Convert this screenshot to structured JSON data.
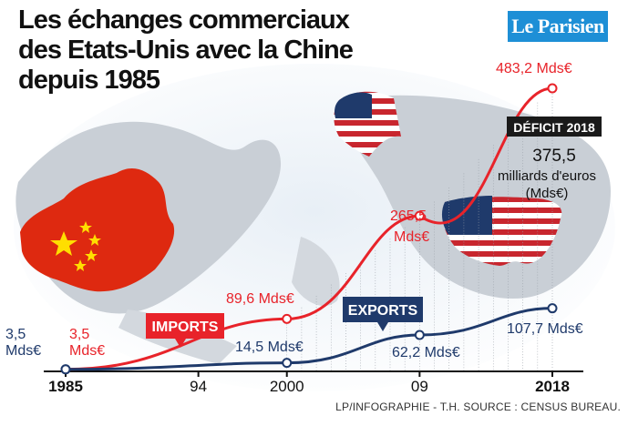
{
  "title_lines": [
    "Les échanges commerciaux",
    "des Etats-Unis avec la Chine",
    "depuis 1985"
  ],
  "logo": "Le Parisien",
  "credit": "LP/INFOGRAPHIE - T.H. SOURCE : CENSUS BUREAU.",
  "colors": {
    "imports": "#e8232a",
    "exports": "#1f3a6b",
    "deficit_box": "#1a1a1a"
  },
  "chart_data": {
    "type": "line",
    "x_ticks": [
      "1985",
      "94",
      "2000",
      "09",
      "2018"
    ],
    "series": [
      {
        "name": "IMPORTS",
        "points": [
          [
            1985,
            3.5
          ],
          [
            2000,
            89.6
          ],
          [
            2009,
            265.5
          ],
          [
            2018,
            483.2
          ]
        ]
      },
      {
        "name": "EXPORTS",
        "points": [
          [
            1985,
            3.5
          ],
          [
            2000,
            14.5
          ],
          [
            2009,
            62.2
          ],
          [
            2018,
            107.7
          ]
        ]
      }
    ],
    "labels": {
      "imports_1985": [
        "3,5",
        "Mds€"
      ],
      "exports_1985": [
        "3,5",
        "Mds€"
      ],
      "imports_2000": "89,6 Mds€",
      "exports_2000": "14,5 Mds€",
      "imports_2009": [
        "265,5",
        "Mds€"
      ],
      "exports_2009": "62,2 Mds€",
      "imports_2018": "483,2 Mds€",
      "exports_2018": "107,7 Mds€"
    },
    "deficit": {
      "label": "DÉFICIT 2018",
      "value": "375,5",
      "unit_lines": [
        "milliards d'euros",
        "(Mds€)"
      ]
    },
    "ylim": [
      0,
      500
    ]
  }
}
